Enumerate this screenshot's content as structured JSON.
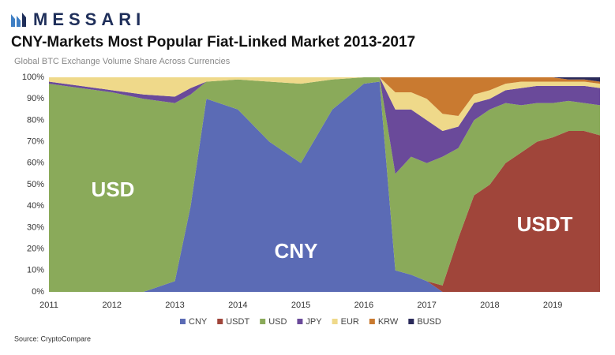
{
  "brand": "MESSARI",
  "chart_data": {
    "type": "area",
    "title": "CNY-Markets Most Popular Fiat-Linked Market 2013-2017",
    "subtitle": "Global BTC Exchange Volume Share Across Currencies",
    "source": "Source: CryptoCompare",
    "annotations": [
      "USD",
      "CNY",
      "USDT"
    ],
    "stacked": true,
    "x": [
      2011,
      2011.5,
      2012,
      2012.5,
      2013,
      2013.25,
      2013.5,
      2014,
      2014.5,
      2015,
      2015.5,
      2016,
      2016.25,
      2016.5,
      2016.75,
      2017,
      2017.25,
      2017.5,
      2017.75,
      2018,
      2018.25,
      2018.5,
      2018.75,
      2019,
      2019.25,
      2019.5,
      2019.75
    ],
    "xlim": [
      2011,
      2019.75
    ],
    "xticks": [
      2011,
      2012,
      2013,
      2014,
      2015,
      2016,
      2017,
      2018,
      2019
    ],
    "ylim": [
      0,
      100
    ],
    "yticks": [
      {
        "value": 0,
        "label": "0%"
      },
      {
        "value": 10,
        "label": "10%"
      },
      {
        "value": 20,
        "label": "20%"
      },
      {
        "value": 30,
        "label": "30%"
      },
      {
        "value": 40,
        "label": "40%"
      },
      {
        "value": 50,
        "label": "50%"
      },
      {
        "value": 60,
        "label": "60%"
      },
      {
        "value": 70,
        "label": "70%"
      },
      {
        "value": 80,
        "label": "80%"
      },
      {
        "value": 90,
        "label": "90%"
      },
      {
        "value": 100,
        "label": "100%"
      }
    ],
    "series": [
      {
        "name": "CNY",
        "color": "#5b6bb5",
        "values": [
          0,
          0,
          0,
          0,
          5,
          40,
          90,
          85,
          70,
          60,
          85,
          97,
          98,
          10,
          8,
          5,
          0,
          0,
          0,
          0,
          0,
          0,
          0,
          0,
          0,
          0,
          0
        ]
      },
      {
        "name": "USDT",
        "color": "#a0453a",
        "values": [
          0,
          0,
          0,
          0,
          0,
          0,
          0,
          0,
          0,
          0,
          0,
          0,
          0,
          0,
          0,
          0,
          3,
          25,
          45,
          50,
          60,
          65,
          70,
          72,
          75,
          75,
          73
        ]
      },
      {
        "name": "USD",
        "color": "#8aaa5a",
        "values": [
          97,
          95,
          93,
          90,
          83,
          52,
          8,
          14,
          28,
          37,
          14,
          3,
          2,
          45,
          55,
          55,
          60,
          42,
          35,
          35,
          28,
          22,
          18,
          16,
          14,
          13,
          14
        ]
      },
      {
        "name": "JPY",
        "color": "#6a4a9a",
        "values": [
          1,
          1,
          1,
          2,
          3,
          3,
          0,
          0,
          0,
          0,
          0,
          0,
          0,
          30,
          22,
          20,
          12,
          10,
          8,
          5,
          6,
          8,
          8,
          8,
          7,
          8,
          8
        ]
      },
      {
        "name": "EUR",
        "color": "#efd98a",
        "values": [
          2,
          4,
          6,
          8,
          9,
          5,
          2,
          1,
          2,
          3,
          1,
          0,
          0,
          8,
          8,
          10,
          8,
          5,
          4,
          4,
          3,
          3,
          2,
          2,
          2,
          2,
          2
        ]
      },
      {
        "name": "KRW",
        "color": "#c97a30",
        "values": [
          0,
          0,
          0,
          0,
          0,
          0,
          0,
          0,
          0,
          0,
          0,
          0,
          0,
          7,
          7,
          10,
          17,
          18,
          8,
          6,
          3,
          2,
          2,
          2,
          1,
          1,
          1
        ]
      },
      {
        "name": "BUSD",
        "color": "#2a2a5a",
        "values": [
          0,
          0,
          0,
          0,
          0,
          0,
          0,
          0,
          0,
          0,
          0,
          0,
          0,
          0,
          0,
          0,
          0,
          0,
          0,
          0,
          0,
          0,
          0,
          0,
          1,
          1,
          2
        ]
      }
    ],
    "legend": "bottom"
  }
}
